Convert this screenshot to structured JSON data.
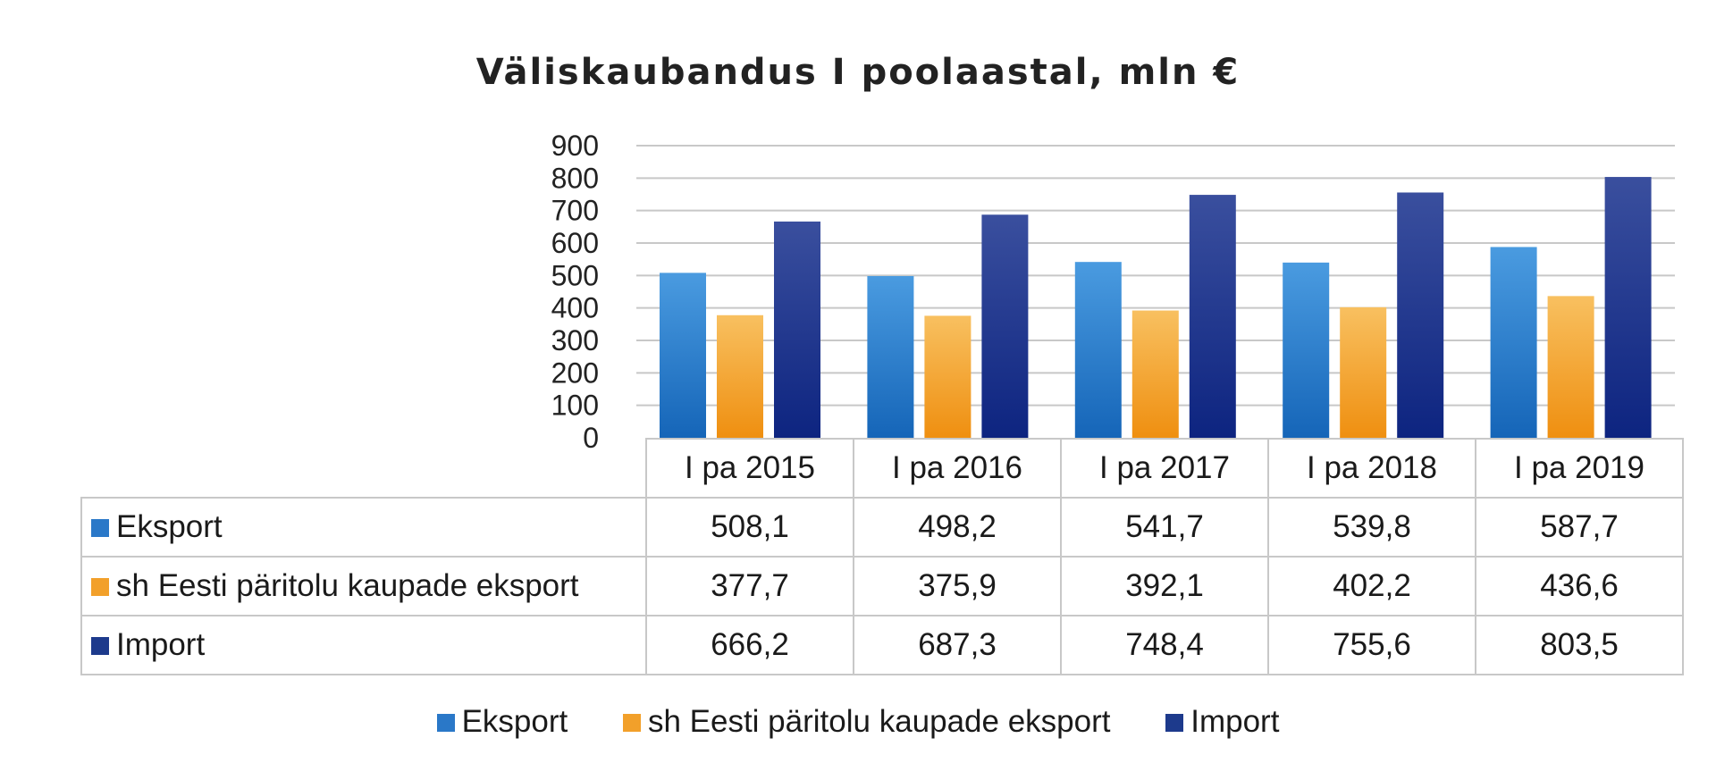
{
  "chart_data": {
    "type": "bar",
    "title": "Väliskaubandus I poolaastal, mln €",
    "categories": [
      "I pa 2015",
      "I pa 2016",
      "I pa 2017",
      "I pa 2018",
      "I pa 2019"
    ],
    "series": [
      {
        "name": "Eksport",
        "color": "#2a78c8",
        "values": [
          508.1,
          498.2,
          541.7,
          539.8,
          587.7
        ]
      },
      {
        "name": "sh Eesti päritolu kaupade eksport",
        "color": "#f2a02a",
        "values": [
          377.7,
          375.9,
          392.1,
          402.2,
          436.6
        ]
      },
      {
        "name": "Import",
        "color": "#1d3a8c",
        "values": [
          666.2,
          687.3,
          748.4,
          755.6,
          803.5
        ]
      }
    ],
    "y_ticks": [
      "0",
      "100",
      "200",
      "300",
      "400",
      "500",
      "600",
      "700",
      "800",
      "900"
    ],
    "ylim": [
      0,
      900
    ],
    "grid": true,
    "legend": "bottom",
    "table": {
      "rows": [
        {
          "label": "Eksport",
          "values": [
            "508,1",
            "498,2",
            "541,7",
            "539,8",
            "587,7"
          ]
        },
        {
          "label": "sh Eesti päritolu kaupade eksport",
          "values": [
            "377,7",
            "375,9",
            "392,1",
            "402,2",
            "436,6"
          ]
        },
        {
          "label": "Import",
          "values": [
            "666,2",
            "687,3",
            "748,4",
            "755,6",
            "803,5"
          ]
        }
      ]
    }
  }
}
